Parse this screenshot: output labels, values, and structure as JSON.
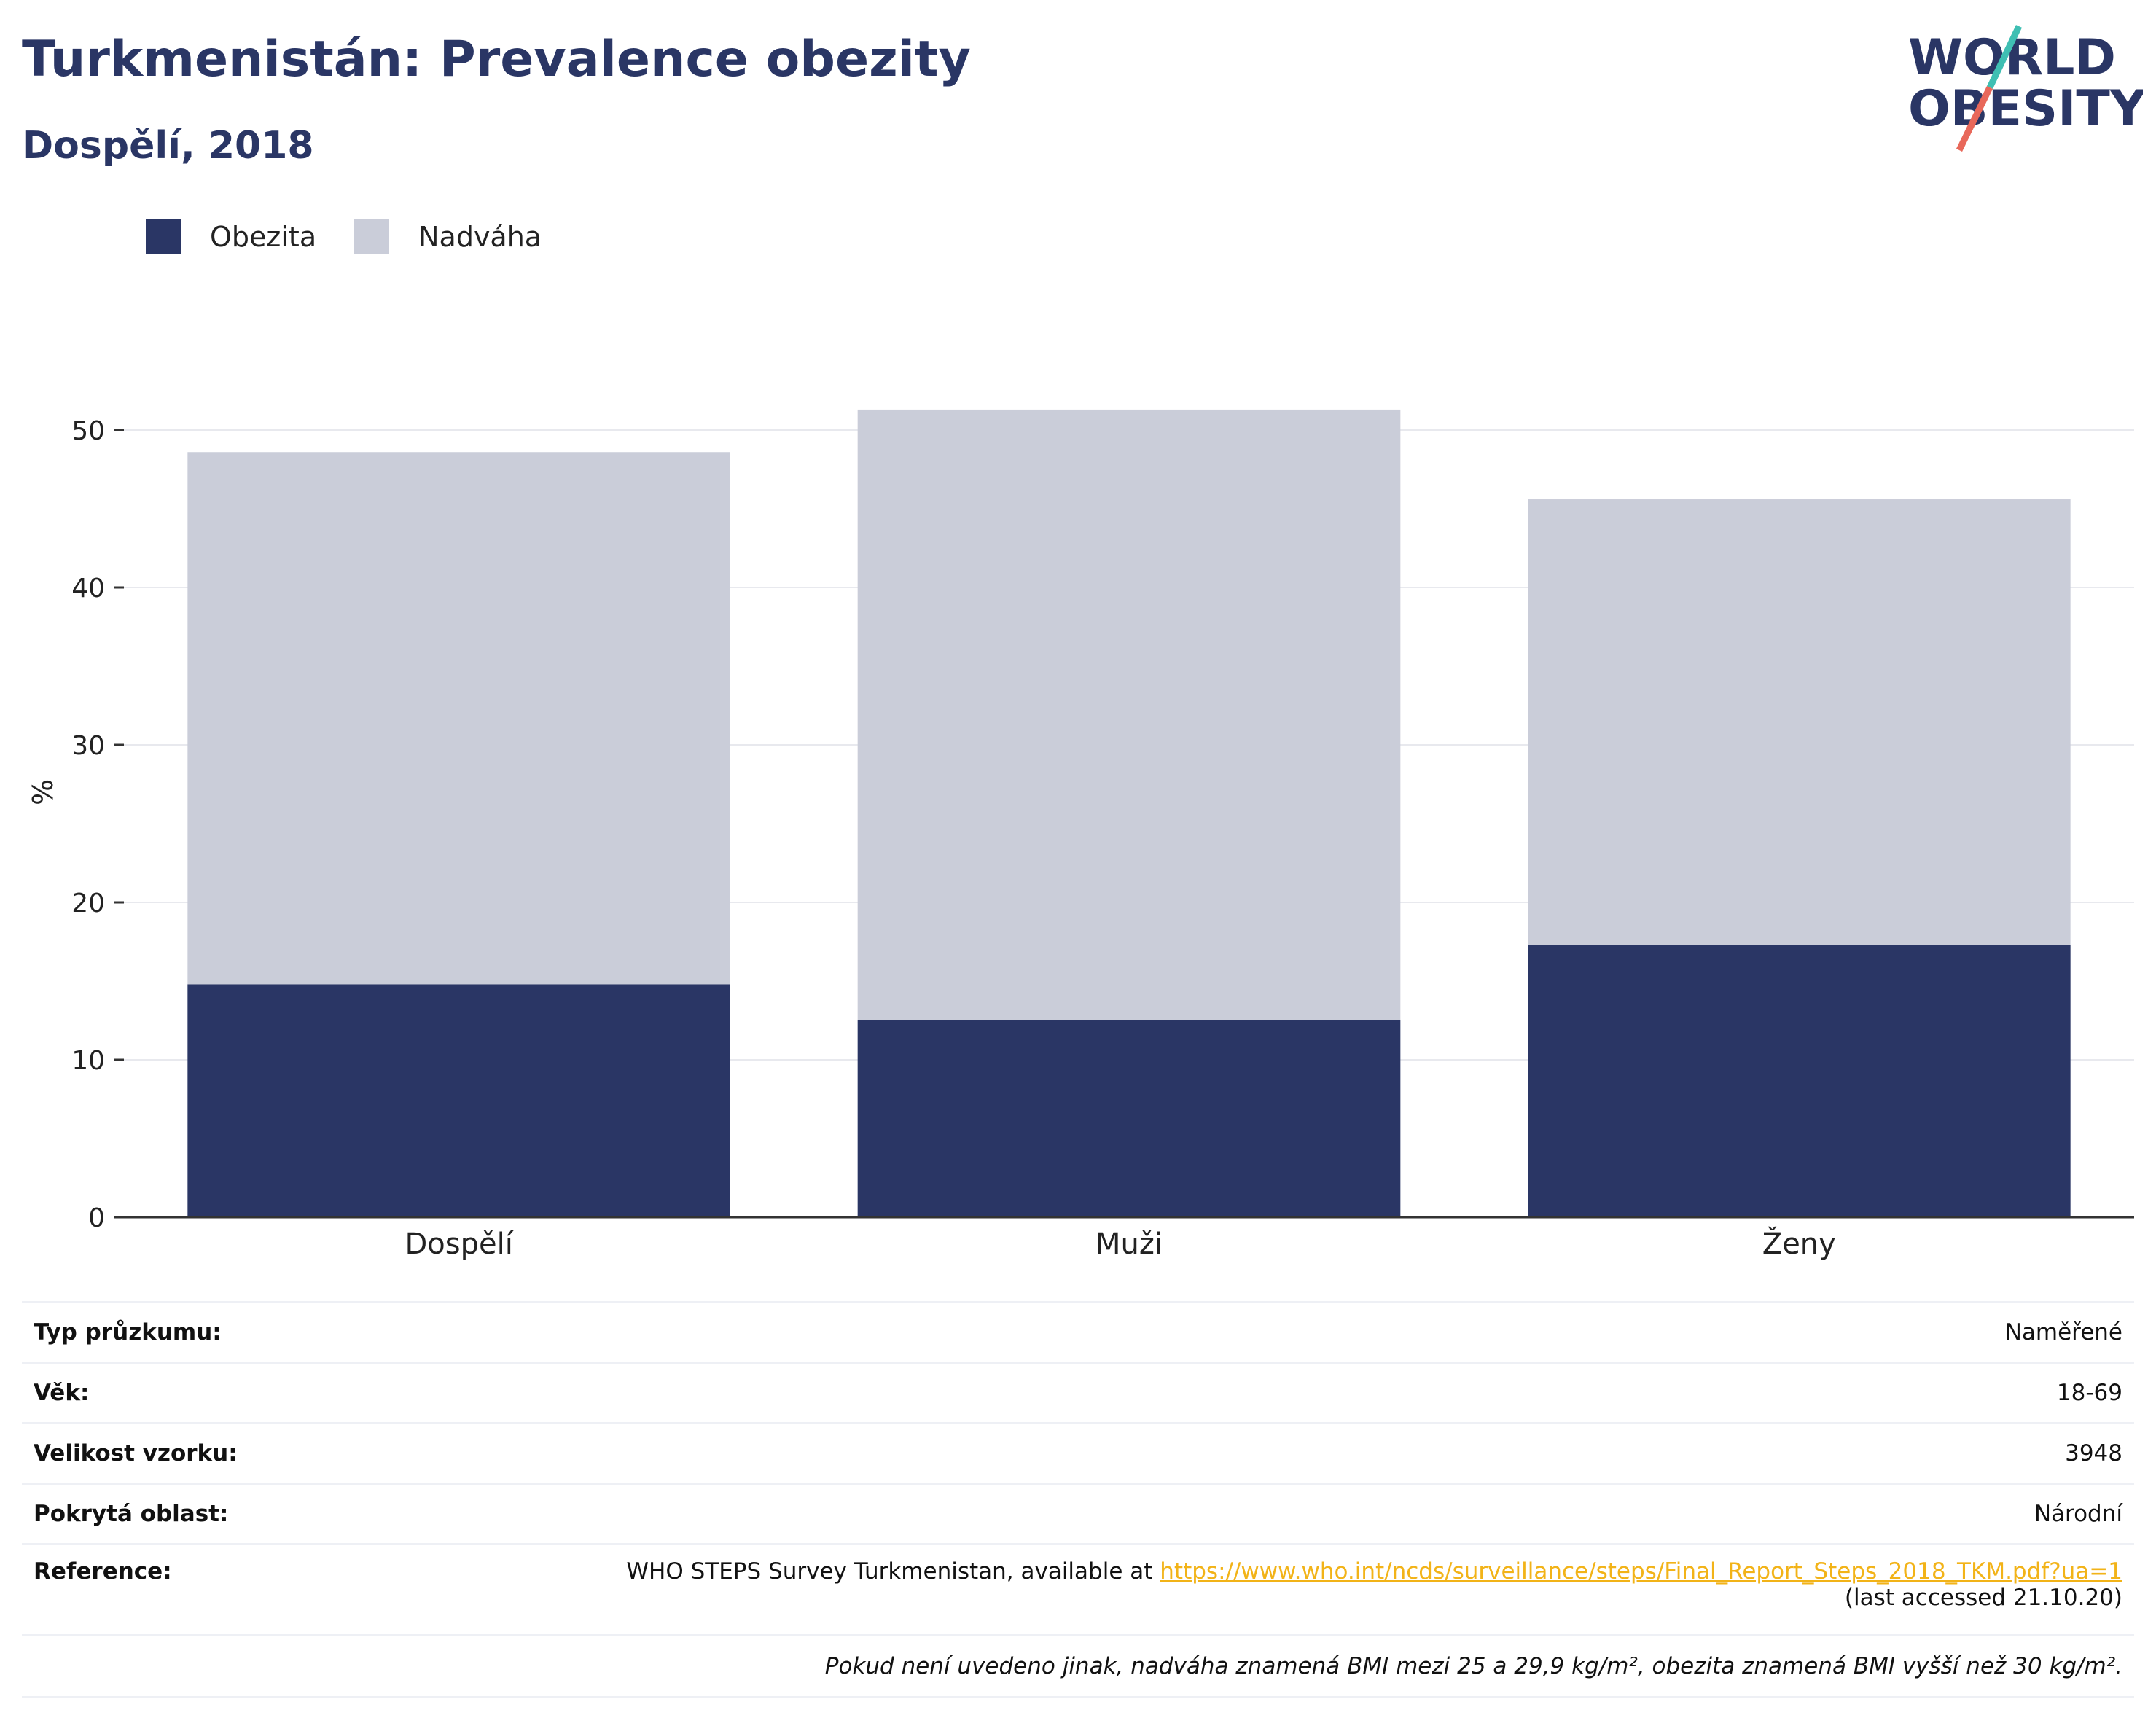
{
  "header": {
    "title": "Turkmenistán: Prevalence obezity",
    "subtitle": "Dospělí, 2018",
    "logo": {
      "line1": "WORLD",
      "line2": "OBESITY"
    }
  },
  "colors": {
    "obesity": "#2a3665",
    "overweight": "#cacdd9",
    "axis": "#333333",
    "grid": "#e8e9ee",
    "link": "#f2b318",
    "logo_text": "#2a3665",
    "logo_slash_top": "#3fbfb3",
    "logo_slash_bottom": "#e8685a"
  },
  "chart_data": {
    "type": "bar",
    "stacked": true,
    "categories": [
      "Dospělí",
      "Muži",
      "Ženy"
    ],
    "series": [
      {
        "name": "Obezita",
        "values": [
          14.8,
          12.5,
          17.3
        ]
      },
      {
        "name": "Nadváha",
        "values": [
          33.8,
          38.8,
          28.3
        ]
      }
    ],
    "xlabel": "",
    "ylabel": "%",
    "ylim": [
      0,
      55
    ],
    "yticks": [
      0,
      10,
      20,
      30,
      40,
      50
    ],
    "grid": true,
    "legend": "top-left"
  },
  "info": {
    "rows": [
      {
        "label": "Typ průzkumu:",
        "value": "Naměřené"
      },
      {
        "label": "Věk:",
        "value": "18-69"
      },
      {
        "label": "Velikost vzorku:",
        "value": "3948"
      },
      {
        "label": "Pokrytá oblast:",
        "value": "Národní"
      }
    ],
    "reference": {
      "label": "Reference:",
      "text": "WHO STEPS Survey Turkmenistan, available at ",
      "link": "https://www.who.int/ncds/surveillance/steps/Final_Report_Steps_2018_TKM.pdf?ua=1",
      "accessed": "(last accessed 21.10.20)"
    },
    "note": "Pokud není uvedeno jinak, nadváha znamená BMI mezi 25 a 29,9 kg/m², obezita znamená BMI vyšší než 30 kg/m²."
  }
}
